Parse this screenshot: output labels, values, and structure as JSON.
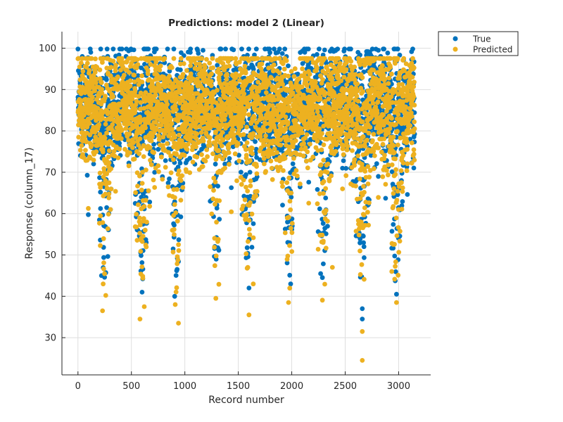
{
  "chart_data": {
    "type": "scatter",
    "title": "Predictions: model 2 (Linear)",
    "xlabel": "Record number",
    "ylabel": "Response (column_17)",
    "xlim": [
      -150,
      3300
    ],
    "ylim": [
      21,
      104
    ],
    "xticks": [
      0,
      500,
      1000,
      1500,
      2000,
      2500,
      3000
    ],
    "yticks": [
      30,
      40,
      50,
      60,
      70,
      80,
      90,
      100
    ],
    "grid": true,
    "legend_position": "outside-top-right",
    "n_records": 3150,
    "series": [
      {
        "name": "True",
        "color": "#0072BD",
        "sample_points": [
          [
            40,
            98
          ],
          [
            120,
            99
          ],
          [
            220,
            45
          ],
          [
            450,
            98
          ],
          [
            560,
            56
          ],
          [
            600,
            41
          ],
          [
            905,
            40
          ],
          [
            1120,
            99.5
          ],
          [
            1170,
            99.5
          ],
          [
            1550,
            98
          ],
          [
            1600,
            42
          ],
          [
            1870,
            99
          ],
          [
            1990,
            43
          ],
          [
            2270,
            45.5
          ],
          [
            2620,
            99
          ],
          [
            2660,
            37
          ],
          [
            2660,
            34.5
          ],
          [
            2810,
            99.5
          ],
          [
            2980,
            40.5
          ]
        ]
      },
      {
        "name": "Predicted",
        "color": "#EDB120",
        "sample_points": [
          [
            20,
            82
          ],
          [
            150,
            80
          ],
          [
            230,
            36.5
          ],
          [
            580,
            34.5
          ],
          [
            620,
            37.5
          ],
          [
            940,
            33.5
          ],
          [
            910,
            38
          ],
          [
            1290,
            39.5
          ],
          [
            1600,
            35.5
          ],
          [
            1640,
            43
          ],
          [
            1970,
            38.5
          ],
          [
            2380,
            47
          ],
          [
            2660,
            31.5
          ],
          [
            2660,
            24.5
          ],
          [
            2980,
            38.5
          ],
          [
            3100,
            92
          ]
        ]
      }
    ]
  }
}
